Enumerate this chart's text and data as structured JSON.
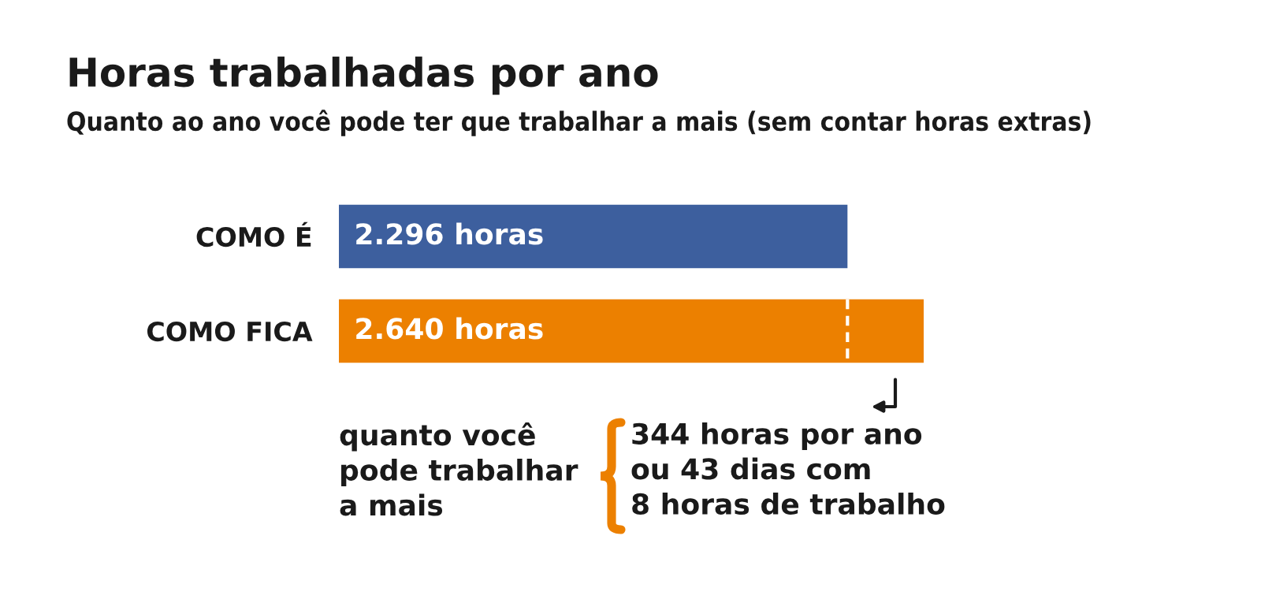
{
  "chart_data": {
    "type": "bar",
    "orientation": "horizontal",
    "title": "Horas trabalhadas por ano",
    "subtitle": "Quanto ao ano você pode ter que trabalhar a mais (sem contar horas extras)",
    "categories": [
      "COMO É",
      "COMO FICA"
    ],
    "values": [
      2296,
      2640
    ],
    "colors": [
      "#3d5f9e",
      "#ec8000"
    ],
    "value_labels": [
      "2.296 horas",
      "2.640 horas"
    ],
    "ref_lines": [
      {
        "axis": "x",
        "value": 2296,
        "color": "#ffffff",
        "line_style": "dashed"
      }
    ],
    "annotations": [
      "quanto você\npode trabalhar\na mais",
      "344 horas por ano\nou 43 dias com\n8 horas de trabalho"
    ],
    "grid": false,
    "legend": false
  }
}
